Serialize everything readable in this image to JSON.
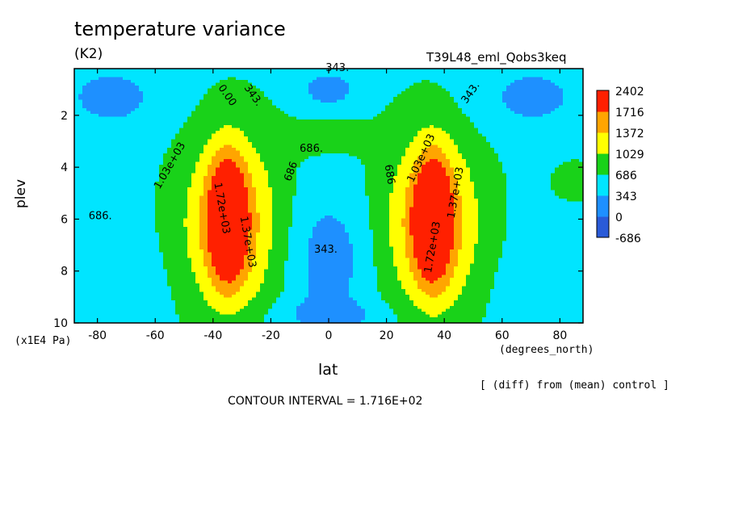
{
  "header": {
    "title": "temperature variance",
    "units": "(K2)",
    "run": "T39L48_eml_Qobs3keq"
  },
  "footer": {
    "diff_note": "[ (diff) from (mean) control ]",
    "contour_interval": "CONTOUR INTERVAL = 1.716E+02"
  },
  "chart_data": {
    "type": "heatmap",
    "title": "temperature variance",
    "xlabel": "lat",
    "xunits": "(degrees_north)",
    "ylabel": "plev",
    "yunits": "(x1E4 Pa)",
    "xlim": [
      -88,
      88
    ],
    "ylim": [
      0.2,
      10
    ],
    "y_inverted": true,
    "xticks": [
      "-80",
      "-60",
      "-40",
      "-20",
      "0",
      "20",
      "40",
      "60",
      "80"
    ],
    "yticks": [
      "2",
      "4",
      "6",
      "8",
      "10"
    ],
    "levels": [
      -686,
      0,
      343,
      686,
      1029,
      1372,
      1716,
      2402
    ],
    "colorbar_labels": [
      "2402",
      "1716",
      "1372",
      "1029",
      "686",
      "343",
      "0",
      "-686"
    ],
    "colors": [
      "#2a5bd8",
      "#1e90ff",
      "#00e5ff",
      "#19d219",
      "#ffff00",
      "#ffa500",
      "#ff2000"
    ],
    "contour_labels": [
      "343.",
      "0.00",
      "343.",
      "686.",
      "686.",
      "686",
      "686.",
      "1.03e+03",
      "1.03e+03",
      "1.72e+03",
      "1.37e+03",
      "1.37e+03",
      "1.72e+03",
      "343."
    ],
    "contour_interval": 171.6
  }
}
